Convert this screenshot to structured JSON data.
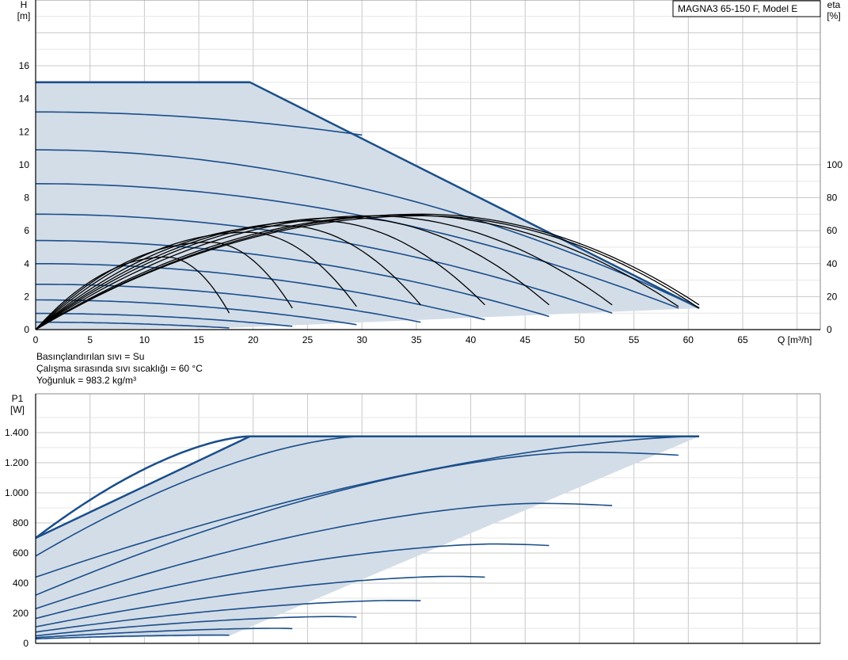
{
  "colors": {
    "curve": "#1a4e8a",
    "area": "#d3dde8",
    "grid": "#c8c8c8",
    "eta": "#000000",
    "frame": "#000000"
  },
  "model_label": "MAGNA3 65-150 F, Model E",
  "info": {
    "line1": "Basınçlandırılan sıvı = Su",
    "line2": "Çalışma sırasında sıvı sıcaklığı = 60 °C",
    "line3": "Yoğunluk = 983.2 kg/m³"
  },
  "chart_data": [
    {
      "type": "line",
      "name_top": "H",
      "unit_top": "[m]",
      "name_right": "eta",
      "unit_right": "[%]",
      "xlabel": "Q [m³/h]",
      "xlim": [
        0,
        72
      ],
      "ylim": [
        0,
        19
      ],
      "x_ticks": [
        0,
        5,
        10,
        15,
        20,
        25,
        30,
        35,
        40,
        45,
        50,
        55,
        60,
        65
      ],
      "y_ticks": [
        0,
        2,
        4,
        6,
        8,
        10,
        12,
        14,
        16
      ],
      "eta_ticks": [
        0,
        20,
        40,
        60,
        80,
        100
      ],
      "eta_scale_h_per_pct": 0.1,
      "envelope": [
        [
          0,
          15
        ],
        [
          19.7,
          15
        ],
        [
          61,
          1.3
        ],
        [
          17.8,
          0.1
        ],
        [
          0,
          0
        ]
      ],
      "head_curves": [
        {
          "h0": 15.0,
          "qmax": 19.7,
          "qend": 19.7,
          "hend": 15.0
        },
        {
          "h0": 13.2,
          "qmax": 30.0,
          "qend": 30.0,
          "hend": 11.8
        },
        {
          "h0": 10.9,
          "qmax": 61.0,
          "qend": 61.0,
          "hend": 1.3
        },
        {
          "h0": 8.85,
          "qmax": 59.1,
          "qend": 59.1,
          "hend": 1.3
        },
        {
          "h0": 7.0,
          "qmax": 53.0,
          "qend": 53.0,
          "hend": 1.0
        },
        {
          "h0": 5.4,
          "qmax": 47.2,
          "qend": 47.2,
          "hend": 0.8
        },
        {
          "h0": 4.0,
          "qmax": 41.3,
          "qend": 41.3,
          "hend": 0.6
        },
        {
          "h0": 2.75,
          "qmax": 35.4,
          "qend": 35.4,
          "hend": 0.45
        },
        {
          "h0": 1.8,
          "qmax": 29.5,
          "qend": 29.5,
          "hend": 0.3
        },
        {
          "h0": 0.98,
          "qmax": 23.6,
          "qend": 23.6,
          "hend": 0.2
        },
        {
          "h0": 0.45,
          "qmax": 17.8,
          "qend": 17.8,
          "hend": 0.1
        }
      ],
      "eta_curves": [
        {
          "qpeak": 12.0,
          "etapeak": 44,
          "qend": 17.8,
          "etaend": 10
        },
        {
          "qpeak": 16.0,
          "etapeak": 53,
          "qend": 23.6,
          "etaend": 13
        },
        {
          "qpeak": 19.5,
          "etapeak": 59,
          "qend": 29.5,
          "etaend": 14
        },
        {
          "qpeak": 23.0,
          "etapeak": 63,
          "qend": 35.4,
          "etaend": 15
        },
        {
          "qpeak": 26.0,
          "etapeak": 66,
          "qend": 41.3,
          "etaend": 15
        },
        {
          "qpeak": 28.5,
          "etapeak": 68,
          "qend": 47.2,
          "etaend": 15
        },
        {
          "qpeak": 31.0,
          "etapeak": 69,
          "qend": 53.0,
          "etaend": 15
        },
        {
          "qpeak": 34.0,
          "etapeak": 69.5,
          "qend": 59.1,
          "etaend": 14
        },
        {
          "qpeak": 35.5,
          "etapeak": 70,
          "qend": 61.0,
          "etaend": 15
        },
        {
          "qpeak": 35.5,
          "etapeak": 69,
          "qend": 61.0,
          "etaend": 13
        }
      ]
    },
    {
      "type": "line",
      "name_top": "P1",
      "unit_top": "[W]",
      "xlim": [
        0,
        72
      ],
      "ylim": [
        0,
        1550
      ],
      "y_ticks": [
        0,
        200,
        400,
        600,
        800,
        1000,
        1200,
        1400
      ],
      "y_tick_labels": [
        "0",
        "200",
        "400",
        "600",
        "800",
        "1.000",
        "1.200",
        "1.400"
      ],
      "envelope": [
        [
          0,
          700
        ],
        [
          19.7,
          1375
        ],
        [
          61,
          1375
        ],
        [
          17.8,
          50
        ],
        [
          0,
          30
        ]
      ],
      "power_curves": [
        {
          "p0": 700,
          "qpeak": 19.7,
          "ppeak": 1375,
          "qend": 19.7,
          "pend": 1375
        },
        {
          "p0": 580,
          "qpeak": 30.0,
          "ppeak": 1375,
          "qend": 30.0,
          "pend": 1375
        },
        {
          "p0": 440,
          "qpeak": 61.0,
          "ppeak": 1375,
          "qend": 61.0,
          "pend": 1375
        },
        {
          "p0": 320,
          "qpeak": 50.0,
          "ppeak": 1270,
          "qend": 59.1,
          "pend": 1250
        },
        {
          "p0": 230,
          "qpeak": 46.0,
          "ppeak": 930,
          "qend": 53.0,
          "pend": 915
        },
        {
          "p0": 165,
          "qpeak": 42.0,
          "ppeak": 660,
          "qend": 47.2,
          "pend": 650
        },
        {
          "p0": 110,
          "qpeak": 38.0,
          "ppeak": 445,
          "qend": 41.3,
          "pend": 440
        },
        {
          "p0": 75,
          "qpeak": 33.0,
          "ppeak": 285,
          "qend": 35.4,
          "pend": 283
        },
        {
          "p0": 50,
          "qpeak": 27.0,
          "ppeak": 178,
          "qend": 29.5,
          "pend": 175
        },
        {
          "p0": 38,
          "qpeak": 22.0,
          "ppeak": 100,
          "qend": 23.6,
          "pend": 98
        },
        {
          "p0": 30,
          "qpeak": 16.0,
          "ppeak": 55,
          "qend": 17.8,
          "pend": 54
        }
      ]
    }
  ]
}
